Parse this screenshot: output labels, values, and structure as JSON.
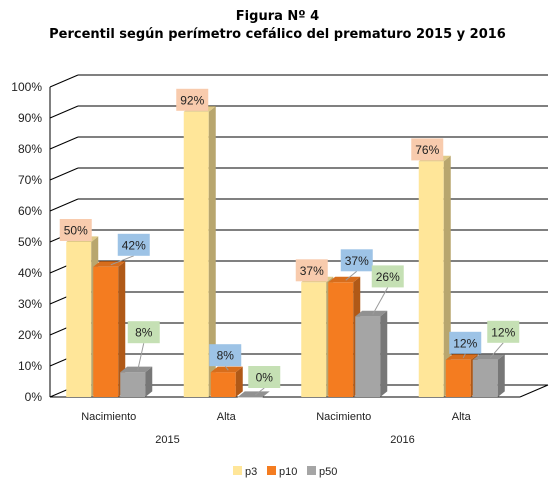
{
  "title": "Figura Nº 4",
  "subtitle": "Percentil según perímetro cefálico del prematuro 2015 y 2016",
  "chart_data": {
    "type": "bar",
    "three_d": true,
    "title": "Figura Nº 4",
    "subtitle": "Percentil según perímetro cefálico del prematuro 2015 y 2016",
    "categories": [
      "Nacimiento",
      "Alta",
      "Nacimiento",
      "Alta"
    ],
    "groups": [
      {
        "label": "2015",
        "categories": [
          "Nacimiento",
          "Alta"
        ]
      },
      {
        "label": "2016",
        "categories": [
          "Nacimiento",
          "Alta"
        ]
      }
    ],
    "series": [
      {
        "name": "p3",
        "values": [
          50,
          92,
          37,
          76
        ],
        "color": "#FFE699",
        "label_bg": "#F8CBAD"
      },
      {
        "name": "p10",
        "values": [
          42,
          8,
          37,
          12
        ],
        "color": "#F47C20",
        "label_bg": "#9DC3E6"
      },
      {
        "name": "p50",
        "values": [
          8,
          0,
          26,
          12
        ],
        "color": "#A5A5A5",
        "label_bg": "#C5E0B4"
      }
    ],
    "data_labels": [
      [
        "50%",
        "92%",
        "37%",
        "76%"
      ],
      [
        "42%",
        "8%",
        "37%",
        "12%"
      ],
      [
        "8%",
        "0%",
        "26%",
        "12%"
      ]
    ],
    "yticks": [
      "0%",
      "10%",
      "20%",
      "30%",
      "40%",
      "50%",
      "60%",
      "70%",
      "80%",
      "90%",
      "100%"
    ],
    "ylim": [
      0,
      100
    ],
    "grid": true,
    "legend_position": "bottom"
  }
}
